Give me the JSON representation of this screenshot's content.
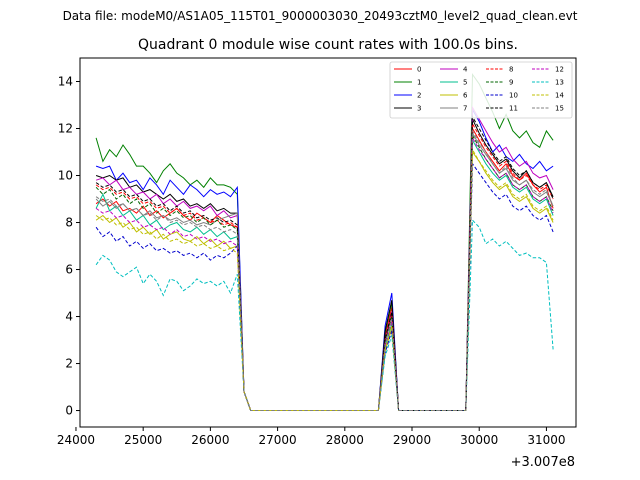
{
  "chart_data": {
    "type": "line",
    "suptitle": "Data file: modeM0/AS1A05_115T01_9000003030_20493cztM0_level2_quad_clean.evt",
    "title": "Quadrant 0 module wise count rates with 100.0s bins.",
    "xlabel": "",
    "ylabel": "",
    "x_offset_label": "+3.007e8",
    "xlim": [
      24060,
      31440
    ],
    "ylim": [
      -0.7,
      15.0
    ],
    "xticks": [
      24000,
      25000,
      26000,
      27000,
      28000,
      29000,
      30000,
      31000
    ],
    "xtick_labels": [
      "24000",
      "25000",
      "26000",
      "27000",
      "28000",
      "29000",
      "30000",
      "31000"
    ],
    "yticks": [
      0,
      2,
      4,
      6,
      8,
      10,
      12,
      14
    ],
    "ytick_labels": [
      "0",
      "2",
      "4",
      "6",
      "8",
      "10",
      "12",
      "14"
    ],
    "legend_position": "top-right",
    "legend_columns": 4,
    "x_start": 24300,
    "x_step": 100,
    "series": [
      {
        "name": "0",
        "color": "#ff0000",
        "dash": false,
        "a": [
          8.8,
          9.0,
          8.7,
          8.9,
          8.5,
          8.6,
          8.4,
          8.7,
          8.3,
          8.5,
          8.2,
          8.4,
          8.6,
          8.3,
          8.1,
          8.4,
          8.2,
          8.0,
          8.3,
          8.1,
          7.9,
          7.8
        ],
        "p": 4.4,
        "b": [
          12.0,
          11.5,
          11.0,
          10.6,
          10.2,
          10.5,
          10.0,
          9.8,
          10.1,
          9.6,
          9.3,
          9.5,
          8.6
        ]
      },
      {
        "name": "1",
        "color": "#008000",
        "dash": false,
        "a": [
          11.6,
          10.6,
          11.1,
          10.8,
          11.3,
          10.9,
          10.4,
          10.4,
          10.1,
          9.7,
          10.2,
          10.5,
          10.1,
          9.9,
          9.6,
          9.8,
          9.5,
          9.9,
          9.6,
          9.6,
          9.5,
          9.2
        ],
        "p": 4.6,
        "b": [
          14.3,
          13.9,
          13.3,
          12.7,
          12.0,
          12.6,
          11.9,
          11.6,
          11.9,
          11.4,
          11.2,
          11.9,
          11.5
        ]
      },
      {
        "name": "2",
        "color": "#0000ff",
        "dash": false,
        "a": [
          10.4,
          10.3,
          10.4,
          9.8,
          10.1,
          9.7,
          9.8,
          9.4,
          9.9,
          9.6,
          9.2,
          9.8,
          9.5,
          9.2,
          9.6,
          9.4,
          9.1,
          9.4,
          9.2,
          9.3,
          9.1,
          9.5
        ],
        "p": 5.0,
        "b": [
          12.8,
          12.3,
          11.6,
          11.0,
          11.3,
          10.8,
          10.6,
          10.9,
          10.5,
          10.3,
          10.6,
          10.2,
          10.4
        ]
      },
      {
        "name": "3",
        "color": "#000000",
        "dash": false,
        "a": [
          10.0,
          9.9,
          10.0,
          9.8,
          9.9,
          9.5,
          9.6,
          9.3,
          9.4,
          9.2,
          9.0,
          9.2,
          8.9,
          9.0,
          8.7,
          8.8,
          8.6,
          8.8,
          8.5,
          8.6,
          8.4,
          8.4
        ],
        "p": 4.7,
        "b": [
          12.4,
          11.8,
          11.3,
          10.9,
          10.5,
          10.7,
          10.2,
          9.9,
          10.2,
          9.7,
          9.5,
          9.7,
          9.1
        ]
      },
      {
        "name": "4",
        "color": "#bf00bf",
        "dash": false,
        "a": [
          9.8,
          9.9,
          9.6,
          9.8,
          9.4,
          9.5,
          9.2,
          9.3,
          9.0,
          9.2,
          8.8,
          9.0,
          8.7,
          8.9,
          8.6,
          8.7,
          8.5,
          8.7,
          8.3,
          8.5,
          8.2,
          8.3
        ],
        "p": 4.2,
        "b": [
          12.9,
          12.4,
          11.9,
          11.4,
          11.0,
          11.2,
          10.7,
          10.4,
          10.6,
          10.1,
          9.9,
          10.0,
          9.4
        ]
      },
      {
        "name": "5",
        "color": "#00bf8f",
        "dash": false,
        "a": [
          8.6,
          9.2,
          8.5,
          8.7,
          8.3,
          8.5,
          8.1,
          8.3,
          7.9,
          8.1,
          7.7,
          7.9,
          8.0,
          7.7,
          7.6,
          7.8,
          7.5,
          7.7,
          7.4,
          7.6,
          7.3,
          7.4
        ],
        "p": 3.7,
        "b": [
          11.5,
          11.0,
          10.5,
          10.1,
          9.8,
          10.0,
          9.5,
          9.3,
          9.5,
          9.0,
          8.8,
          9.0,
          8.3
        ]
      },
      {
        "name": "6",
        "color": "#bfbf00",
        "dash": false,
        "a": [
          8.1,
          8.3,
          8.0,
          8.2,
          7.8,
          8.0,
          7.6,
          7.8,
          7.5,
          7.7,
          7.3,
          7.5,
          7.6,
          7.3,
          7.2,
          7.4,
          7.1,
          7.3,
          7.0,
          7.2,
          6.9,
          7.0
        ],
        "p": 3.5,
        "b": [
          11.0,
          10.6,
          10.1,
          9.7,
          9.4,
          9.6,
          9.1,
          8.9,
          9.1,
          8.6,
          8.4,
          8.6,
          8.0
        ]
      },
      {
        "name": "7",
        "color": "#808080",
        "dash": false,
        "a": [
          9.0,
          8.7,
          8.9,
          8.6,
          8.8,
          8.5,
          8.6,
          8.3,
          8.5,
          8.2,
          8.3,
          8.1,
          8.2,
          8.0,
          8.1,
          7.9,
          8.0,
          7.9,
          8.1,
          8.2,
          8.3,
          8.4
        ],
        "p": 4.0,
        "b": [
          11.8,
          11.3,
          10.9,
          10.5,
          10.1,
          10.3,
          9.8,
          9.6,
          9.8,
          9.3,
          9.1,
          9.3,
          8.7
        ]
      },
      {
        "name": "8",
        "color": "#ff0000",
        "dash": true,
        "a": [
          9.6,
          9.4,
          9.5,
          9.2,
          9.3,
          9.0,
          9.1,
          8.8,
          8.9,
          8.6,
          8.7,
          8.4,
          8.6,
          8.3,
          8.4,
          8.1,
          8.2,
          8.0,
          8.1,
          7.9,
          8.0,
          7.8
        ],
        "p": 4.1,
        "b": [
          12.2,
          11.7,
          11.2,
          10.8,
          10.4,
          10.6,
          10.1,
          9.8,
          10.0,
          9.6,
          9.4,
          9.6,
          9.0
        ]
      },
      {
        "name": "9",
        "color": "#006400",
        "dash": true,
        "a": [
          9.5,
          9.2,
          9.4,
          9.0,
          9.2,
          8.8,
          9.0,
          8.6,
          8.8,
          8.4,
          8.6,
          8.3,
          8.5,
          8.2,
          8.3,
          8.0,
          8.2,
          7.9,
          8.1,
          7.8,
          7.9,
          7.7
        ],
        "p": 4.0,
        "b": [
          11.7,
          11.2,
          10.7,
          10.3,
          9.9,
          10.1,
          9.6,
          9.4,
          9.6,
          9.1,
          8.9,
          9.1,
          8.5
        ]
      },
      {
        "name": "10",
        "color": "#0000cd",
        "dash": true,
        "a": [
          7.8,
          7.4,
          7.6,
          7.2,
          7.4,
          7.0,
          7.2,
          6.9,
          7.1,
          6.8,
          6.9,
          6.7,
          6.8,
          6.6,
          6.7,
          6.5,
          6.7,
          6.4,
          6.6,
          6.5,
          6.7,
          7.0
        ],
        "p": 3.4,
        "b": [
          10.5,
          10.1,
          9.7,
          9.3,
          9.0,
          9.2,
          8.7,
          8.5,
          8.7,
          8.3,
          8.1,
          8.3,
          7.6
        ]
      },
      {
        "name": "11",
        "color": "#000000",
        "dash": true,
        "a": [
          9.7,
          9.5,
          9.6,
          9.3,
          9.4,
          9.1,
          9.2,
          8.9,
          9.0,
          8.7,
          8.8,
          8.5,
          8.7,
          8.4,
          8.5,
          8.2,
          8.3,
          8.1,
          8.2,
          8.0,
          8.1,
          7.9
        ],
        "p": 4.2,
        "b": [
          12.5,
          12.0,
          11.5,
          11.0,
          10.6,
          10.8,
          10.3,
          10.0,
          10.2,
          9.7,
          9.5,
          9.7,
          9.0
        ]
      },
      {
        "name": "12",
        "color": "#bf00bf",
        "dash": true,
        "a": [
          8.6,
          8.4,
          8.5,
          8.2,
          8.3,
          8.0,
          8.1,
          7.8,
          7.9,
          7.7,
          7.8,
          7.5,
          7.7,
          7.4,
          7.5,
          7.3,
          7.4,
          7.2,
          7.3,
          7.1,
          7.2,
          7.0
        ],
        "p": 3.8,
        "b": [
          11.6,
          11.1,
          10.7,
          10.3,
          9.9,
          10.1,
          9.6,
          9.4,
          9.6,
          9.1,
          8.9,
          9.1,
          8.4
        ]
      },
      {
        "name": "13",
        "color": "#00bfbf",
        "dash": true,
        "a": [
          6.2,
          6.6,
          6.4,
          5.9,
          5.7,
          5.9,
          6.1,
          5.4,
          5.8,
          5.5,
          4.9,
          5.6,
          5.5,
          5.1,
          5.3,
          5.6,
          5.4,
          5.5,
          5.3,
          5.5,
          5.0,
          5.8
        ],
        "p": 3.2,
        "b": [
          8.1,
          7.8,
          7.1,
          7.3,
          7.0,
          7.2,
          6.9,
          6.6,
          6.7,
          6.5,
          6.5,
          6.3,
          2.6
        ]
      },
      {
        "name": "14",
        "color": "#bfbf00",
        "dash": true,
        "a": [
          8.3,
          8.1,
          8.2,
          7.9,
          8.0,
          7.7,
          7.8,
          7.5,
          7.6,
          7.3,
          7.5,
          7.2,
          7.3,
          7.1,
          7.2,
          7.0,
          7.1,
          6.9,
          7.0,
          6.8,
          6.9,
          6.7
        ],
        "p": 3.6,
        "b": [
          11.1,
          10.6,
          10.2,
          9.8,
          9.5,
          9.7,
          9.2,
          9.0,
          9.2,
          8.7,
          8.5,
          8.7,
          8.1
        ]
      },
      {
        "name": "15",
        "color": "#808080",
        "dash": true,
        "a": [
          9.1,
          8.9,
          9.0,
          8.7,
          8.8,
          8.5,
          8.6,
          8.3,
          8.4,
          8.1,
          8.3,
          8.0,
          8.1,
          7.9,
          8.0,
          7.8,
          7.9,
          7.7,
          7.8,
          7.6,
          7.7,
          7.5
        ],
        "p": 3.9,
        "b": [
          11.9,
          11.4,
          11.0,
          10.5,
          10.1,
          10.4,
          9.9,
          9.6,
          9.8,
          9.4,
          9.2,
          9.4,
          8.7
        ]
      }
    ]
  }
}
